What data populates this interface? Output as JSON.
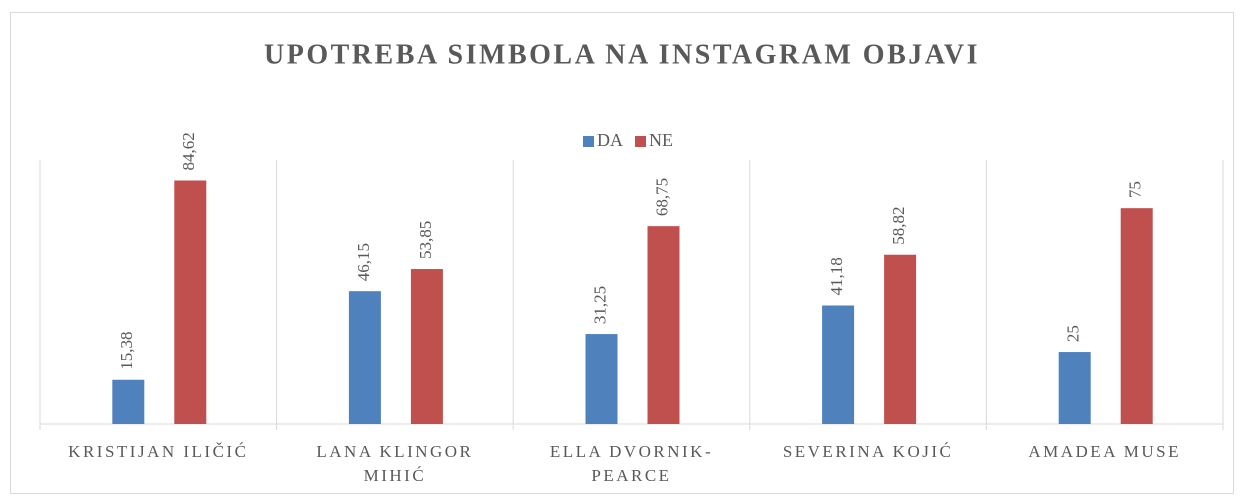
{
  "chart_data": {
    "type": "bar",
    "title": "UPOTREBA SIMBOLA NA INSTAGRAM OBJAVI",
    "categories": [
      "KRISTIJAN ILIČIĆ",
      "LANA KLINGOR MIHIĆ",
      "ELLA DVORNIK-PEARCE",
      "SEVERINA KOJIĆ",
      "AMADEA MUSE"
    ],
    "series": [
      {
        "name": "DA",
        "color": "#4f81bd",
        "values": [
          15.38,
          46.15,
          31.25,
          41.18,
          25
        ],
        "value_labels": [
          "15,38",
          "46,15",
          "31,25",
          "41,18",
          "25"
        ]
      },
      {
        "name": "NE",
        "color": "#c0504d",
        "values": [
          84.62,
          53.85,
          68.75,
          58.82,
          75
        ],
        "value_labels": [
          "84,62",
          "53,85",
          "68,75",
          "58,82",
          "75"
        ]
      }
    ],
    "ylim": [
      0,
      90
    ],
    "legend": "top"
  }
}
